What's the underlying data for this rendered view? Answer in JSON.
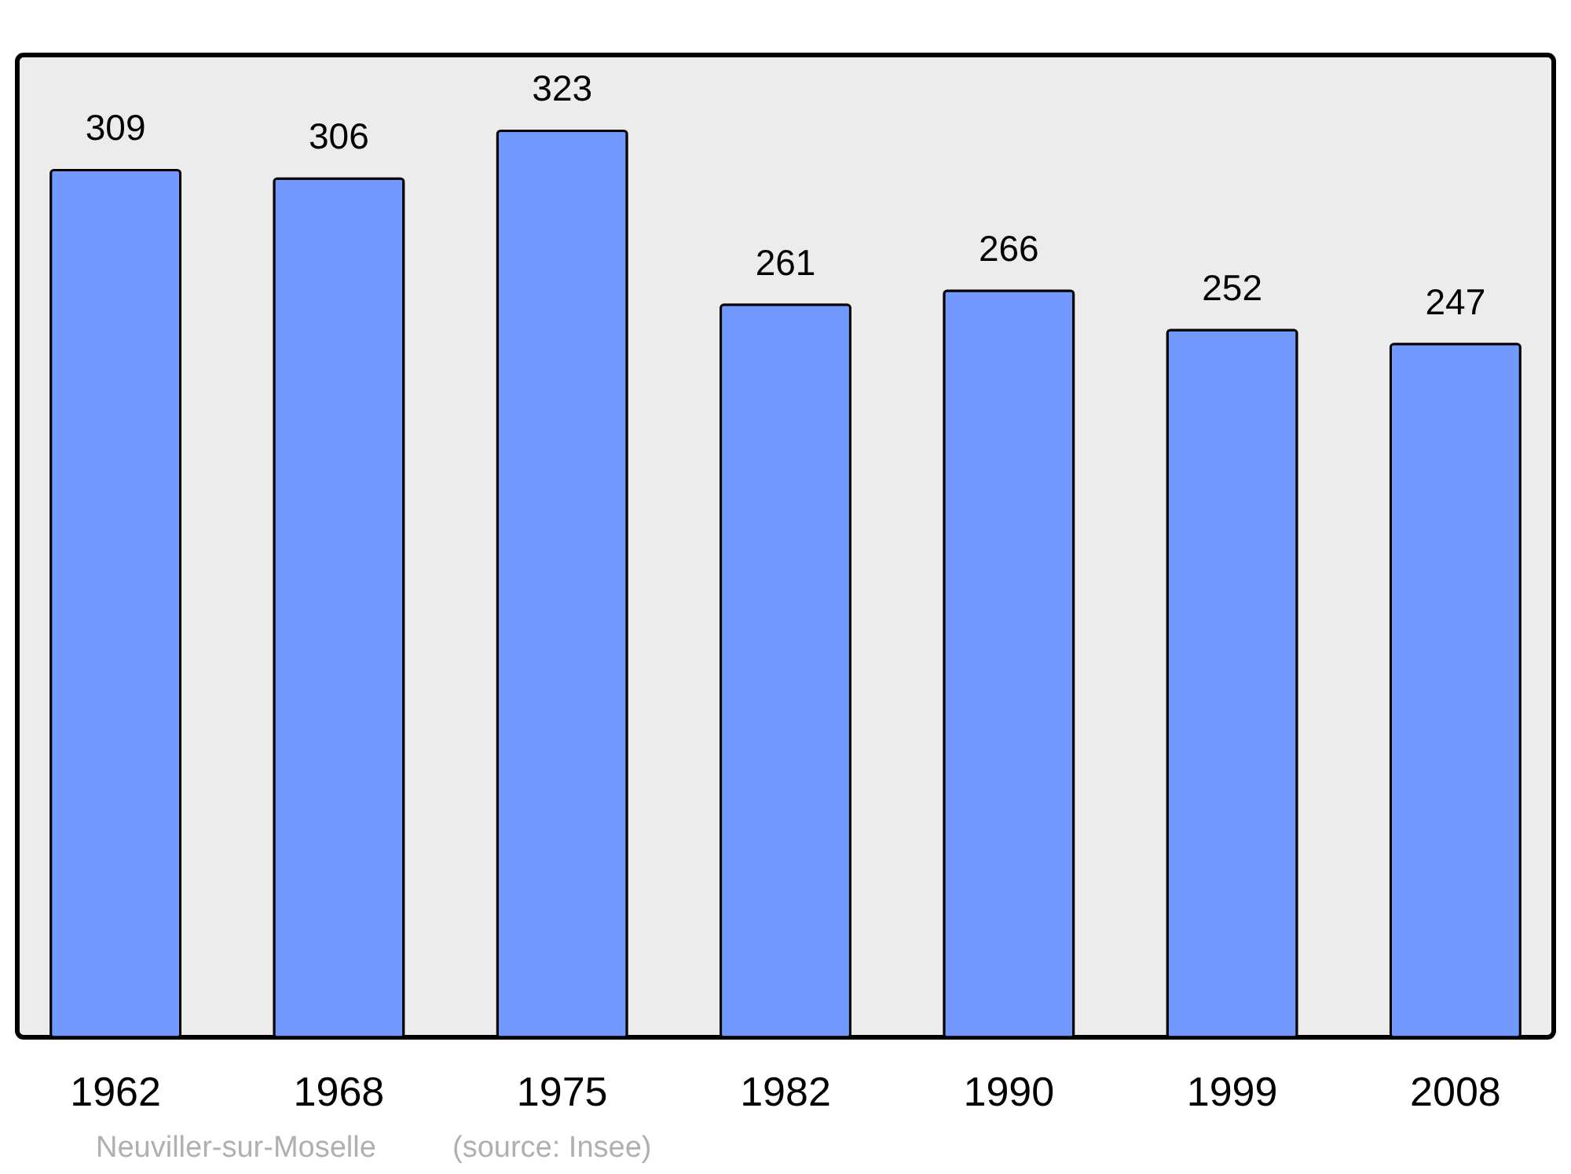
{
  "chart_data": {
    "type": "bar",
    "categories": [
      "1962",
      "1968",
      "1975",
      "1982",
      "1990",
      "1999",
      "2008"
    ],
    "values": [
      309,
      306,
      323,
      261,
      266,
      252,
      247
    ],
    "color": "#7399ff",
    "data_labels": true,
    "tick_labels": "x",
    "annotations": [
      "Neuviller-sur-Moselle",
      "(source: Insee)"
    ]
  }
}
